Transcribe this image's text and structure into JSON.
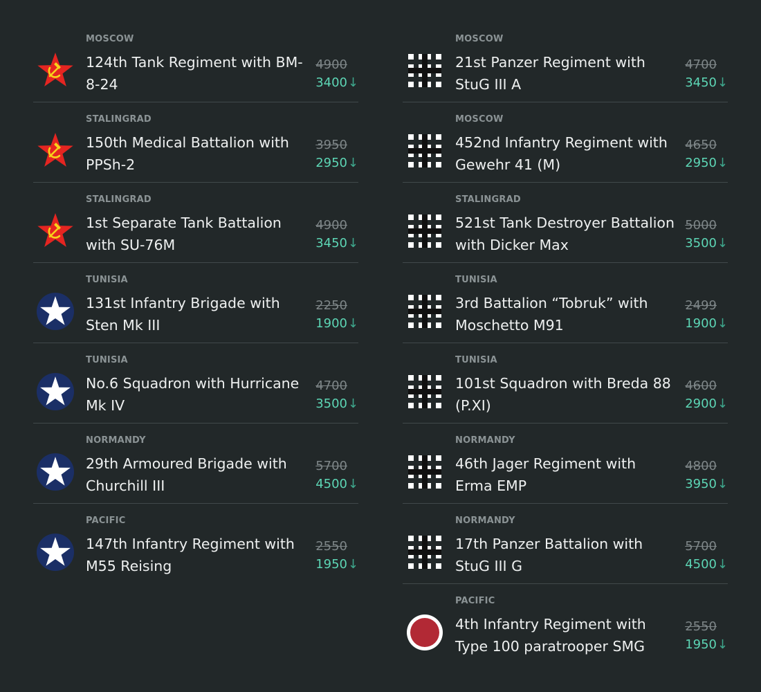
{
  "colors": {
    "background": "#222829",
    "divider": "#41494b",
    "location_text": "#8b9395",
    "title_text": "#eef0f0",
    "old_price": "#7e8688",
    "new_price": "#5dd6b5",
    "ussr_red": "#e52521",
    "ussr_gold": "#f7d21a",
    "allies_blue": "#1b2f66",
    "japan_red": "#b22935"
  },
  "discount_arrow": "↓",
  "left_column": [
    {
      "nation": "ussr",
      "icon": "soviet-star-icon",
      "location": "MOSCOW",
      "title": "124th Tank Regiment with BM-8-24",
      "old_price": "4900",
      "new_price": "3400"
    },
    {
      "nation": "ussr",
      "icon": "soviet-star-icon",
      "location": "STALINGRAD",
      "title": "150th Medical Battalion with PPSh-2",
      "old_price": "3950",
      "new_price": "2950"
    },
    {
      "nation": "ussr",
      "icon": "soviet-star-icon",
      "location": "STALINGRAD",
      "title": "1st Separate Tank Battalion with SU-76M",
      "old_price": "4900",
      "new_price": "3450"
    },
    {
      "nation": "allies",
      "icon": "allied-star-icon",
      "location": "TUNISIA",
      "title": "131st Infantry Brigade with Sten Mk III",
      "old_price": "2250",
      "new_price": "1900"
    },
    {
      "nation": "allies",
      "icon": "allied-star-icon",
      "location": "TUNISIA",
      "title": "No.6 Squadron with Hurricane Mk IV",
      "old_price": "4700",
      "new_price": "3500"
    },
    {
      "nation": "allies",
      "icon": "allied-star-icon",
      "location": "NORMANDY",
      "title": "29th Armoured Brigade with Churchill III",
      "old_price": "5700",
      "new_price": "4500"
    },
    {
      "nation": "allies",
      "icon": "allied-star-icon",
      "location": "PACIFIC",
      "title": "147th Infantry Regiment with M55 Reising",
      "old_price": "2550",
      "new_price": "1950"
    }
  ],
  "right_column": [
    {
      "nation": "axis",
      "icon": "balkenkreuz-icon",
      "location": "MOSCOW",
      "title": "21st Panzer Regiment with StuG III A",
      "old_price": "4700",
      "new_price": "3450"
    },
    {
      "nation": "axis",
      "icon": "balkenkreuz-icon",
      "location": "MOSCOW",
      "title": "452nd Infantry Regiment with Gewehr 41 (M)",
      "old_price": "4650",
      "new_price": "2950"
    },
    {
      "nation": "axis",
      "icon": "balkenkreuz-icon",
      "location": "STALINGRAD",
      "title": "521st Tank Destroyer Battalion with Dicker Max",
      "old_price": "5000",
      "new_price": "3500"
    },
    {
      "nation": "axis",
      "icon": "balkenkreuz-icon",
      "location": "TUNISIA",
      "title": "3rd Battalion “Tobruk” with Moschetto M91",
      "old_price": "2499",
      "new_price": "1900"
    },
    {
      "nation": "axis",
      "icon": "balkenkreuz-icon",
      "location": "TUNISIA",
      "title": "101st Squadron with Breda 88 (P.XI)",
      "old_price": "4600",
      "new_price": "2900"
    },
    {
      "nation": "axis",
      "icon": "balkenkreuz-icon",
      "location": "NORMANDY",
      "title": "46th Jager Regiment with Erma EMP",
      "old_price": "4800",
      "new_price": "3950"
    },
    {
      "nation": "axis",
      "icon": "balkenkreuz-icon",
      "location": "NORMANDY",
      "title": "17th Panzer Battalion with StuG III G",
      "old_price": "5700",
      "new_price": "4500"
    },
    {
      "nation": "japan",
      "icon": "rising-sun-icon",
      "location": "PACIFIC",
      "title": "4th Infantry Regiment with Type 100 paratrooper SMG",
      "old_price": "2550",
      "new_price": "1950"
    }
  ]
}
